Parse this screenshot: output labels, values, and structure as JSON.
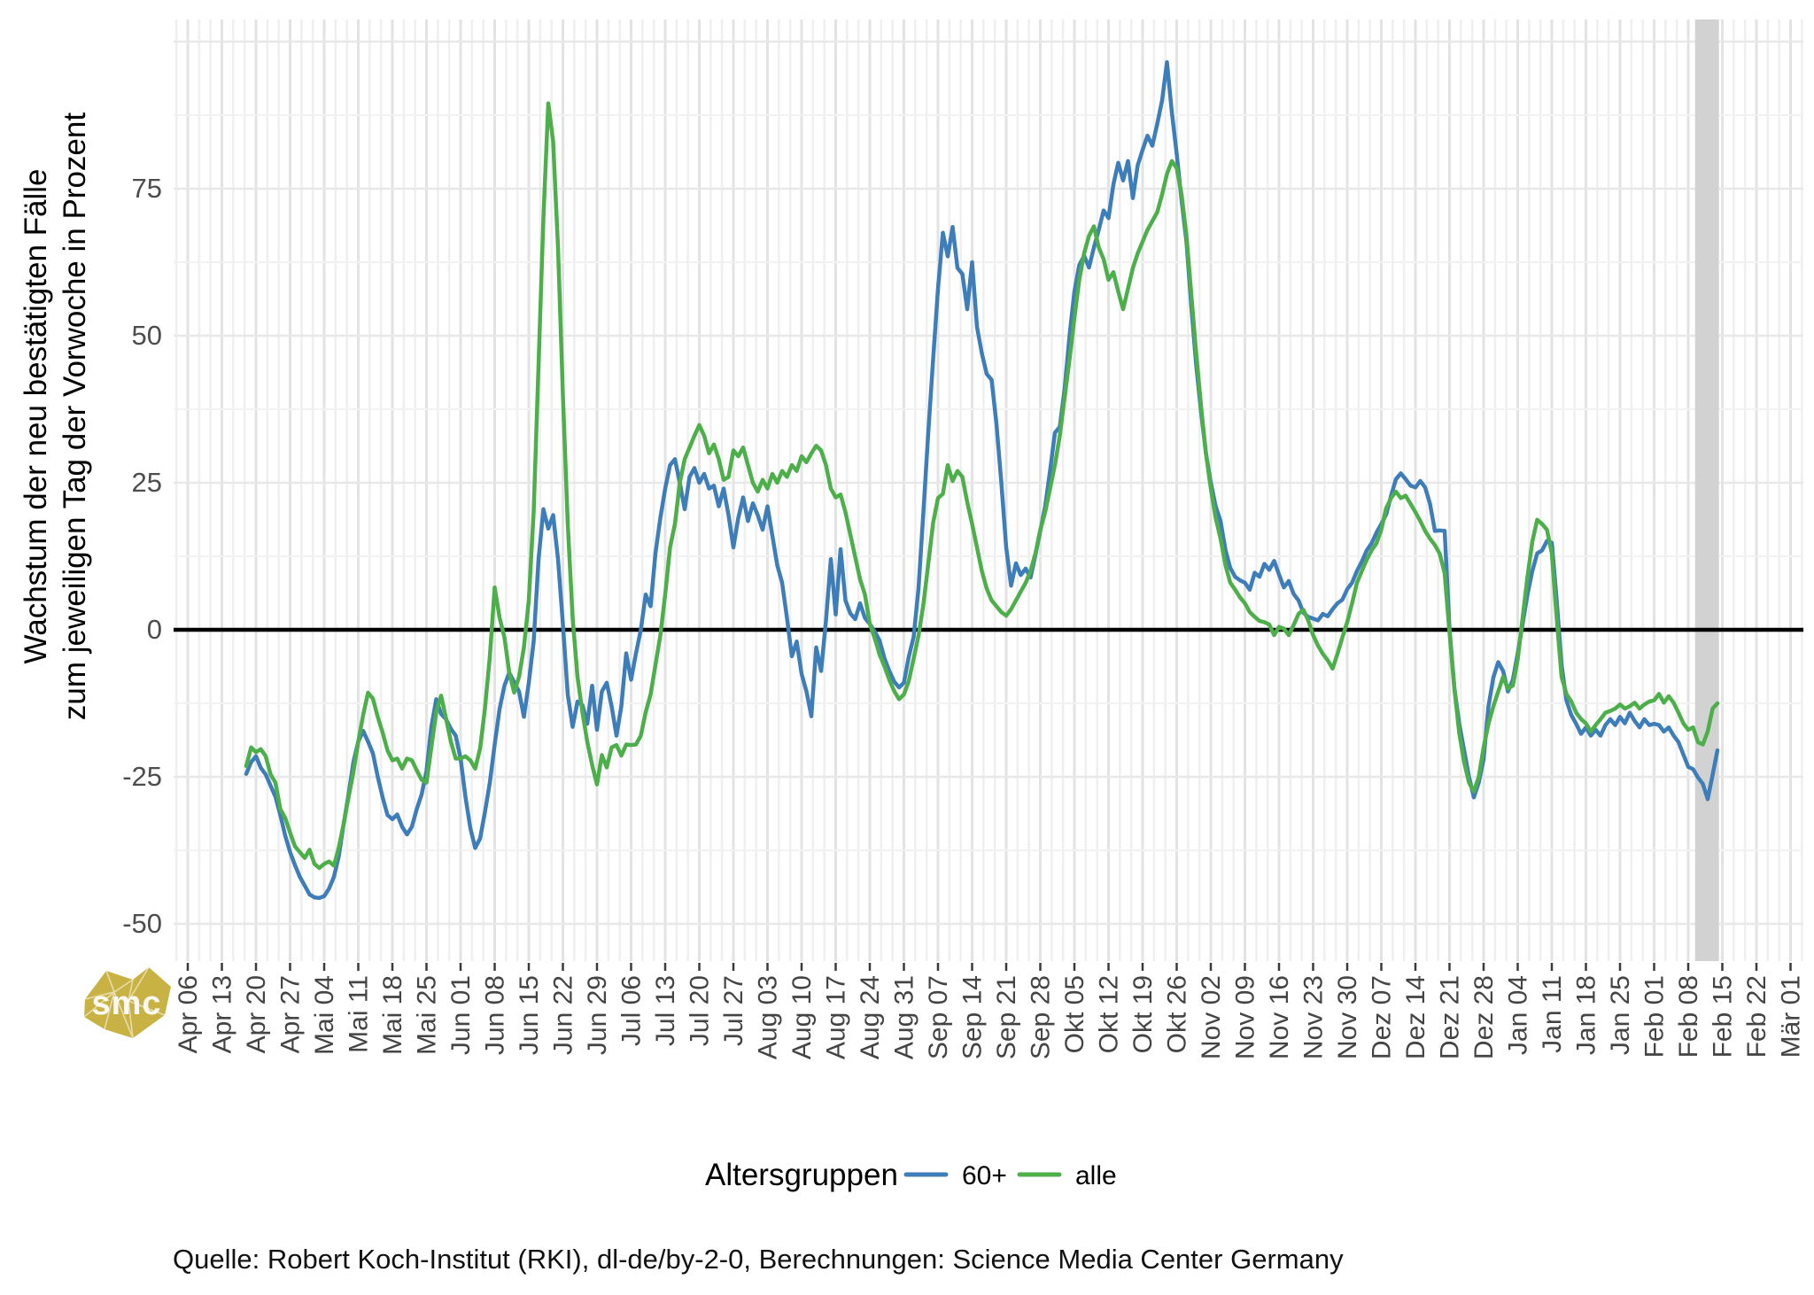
{
  "chart_data": {
    "type": "line",
    "title": "",
    "ylabel_lines": [
      "Wachstum der neu bestätigten Fälle",
      "zum jeweiligen Tag der Vorwoche in Prozent"
    ],
    "y_tick_values": [
      75,
      50,
      25,
      0,
      -25,
      -50
    ],
    "y_minor_values": [
      87.5,
      62.5,
      37.5,
      12.5,
      -12.5,
      -37.5
    ],
    "y_major_grid_values": [
      100,
      75,
      50,
      25,
      -25,
      -50
    ],
    "ylim": [
      -56,
      104
    ],
    "grid": "on",
    "legend_position": "bottom",
    "x_tick_labels": [
      "Apr 06",
      "Apr 13",
      "Apr 20",
      "Apr 27",
      "Mai 04",
      "Mai 11",
      "Mai 18",
      "Mai 25",
      "Jun 01",
      "Jun 08",
      "Jun 15",
      "Jun 22",
      "Jun 29",
      "Jul 06",
      "Jul 13",
      "Jul 20",
      "Jul 27",
      "Aug 03",
      "Aug 10",
      "Aug 17",
      "Aug 24",
      "Aug 31",
      "Sep 07",
      "Sep 14",
      "Sep 21",
      "Sep 28",
      "Okt 05",
      "Okt 12",
      "Okt 19",
      "Okt 26",
      "Nov 02",
      "Nov 09",
      "Nov 16",
      "Nov 23",
      "Nov 30",
      "Dez 07",
      "Dez 14",
      "Dez 21",
      "Dez 28",
      "Jan 04",
      "Jan 11",
      "Jan 18",
      "Jan 25",
      "Feb 01",
      "Feb 08",
      "Feb 15",
      "Feb 22",
      "Mär 01"
    ],
    "start_day_offset": 12,
    "highlight_band": {
      "from_day": 309.4,
      "to_day": 314.3,
      "color": "#d2d2d2"
    },
    "zero_line_color": "#000000",
    "series": [
      {
        "name": "60+",
        "color": "#3d7db9",
        "values": [
          -24.5,
          -22.5,
          -21.5,
          -23.5,
          -24.6,
          -26.5,
          -28.4,
          -31.5,
          -35.0,
          -37.8,
          -40.0,
          -42.0,
          -43.5,
          -45.0,
          -45.5,
          -45.6,
          -45.3,
          -44.0,
          -42.0,
          -38.5,
          -33.0,
          -28.0,
          -22.5,
          -19.0,
          -17.2,
          -19.0,
          -21.0,
          -25.0,
          -28.5,
          -31.5,
          -32.2,
          -31.4,
          -33.5,
          -34.8,
          -33.5,
          -30.5,
          -28.0,
          -24.0,
          -16.5,
          -11.8,
          -14.3,
          -15.2,
          -16.8,
          -18.0,
          -21.9,
          -28.4,
          -33.7,
          -37.1,
          -35.5,
          -31.0,
          -26.0,
          -19.5,
          -13.5,
          -9.5,
          -7.3,
          -8.9,
          -10.5,
          -14.8,
          -9.0,
          -2.0,
          12.0,
          20.5,
          17.2,
          19.5,
          12.0,
          1.0,
          -11.0,
          -16.5,
          -12.2,
          -12.8,
          -16.0,
          -9.5,
          -17.0,
          -10.5,
          -9.0,
          -13.0,
          -18.0,
          -13.0,
          -4.0,
          -8.5,
          -4.0,
          0.0,
          6.0,
          4.0,
          13.0,
          19.0,
          24.0,
          28.0,
          29.0,
          25.0,
          20.5,
          26.0,
          27.5,
          25.0,
          26.5,
          24.0,
          24.5,
          21.0,
          24.0,
          19.5,
          14.0,
          19.0,
          22.5,
          18.5,
          21.5,
          19.5,
          17.0,
          21.0,
          16.0,
          11.0,
          8.0,
          2.0,
          -4.5,
          -2.0,
          -7.5,
          -10.5,
          -14.7,
          -3.0,
          -7.0,
          1.5,
          12.0,
          2.6,
          13.7,
          5.0,
          2.8,
          1.8,
          4.5,
          2.0,
          1.0,
          -0.3,
          -1.8,
          -4.8,
          -7.0,
          -8.8,
          -9.8,
          -9.0,
          -4.6,
          -1.2,
          7.0,
          20.0,
          33.5,
          46.0,
          58.0,
          67.5,
          63.5,
          68.5,
          61.5,
          60.5,
          54.5,
          62.5,
          51.5,
          47.0,
          43.5,
          42.5,
          35.0,
          25.0,
          14.0,
          7.5,
          11.3,
          9.3,
          10.4,
          8.9,
          12.7,
          16.8,
          21.0,
          27.0,
          33.5,
          34.5,
          41.0,
          50.0,
          57.5,
          62.0,
          63.6,
          61.6,
          65.0,
          68.0,
          71.3,
          70.0,
          75.7,
          79.4,
          76.4,
          79.7,
          73.4,
          79.0,
          81.6,
          84.0,
          82.3,
          86.0,
          90.0,
          96.5,
          88.0,
          80.9,
          73.0,
          66.0,
          55.0,
          45.0,
          37.0,
          30.0,
          25.0,
          21.0,
          18.5,
          13.6,
          10.5,
          9.0,
          8.4,
          8.0,
          6.8,
          9.7,
          9.0,
          11.2,
          10.2,
          11.7,
          9.4,
          7.2,
          8.3,
          6.1,
          5.0,
          2.9,
          2.2,
          1.9,
          1.6,
          2.7,
          2.3,
          3.5,
          4.5,
          5.1,
          6.9,
          8.0,
          10.0,
          11.6,
          13.5,
          14.7,
          16.5,
          18.0,
          19.6,
          22.8,
          25.6,
          26.6,
          25.6,
          24.5,
          24.2,
          25.3,
          24.2,
          21.4,
          16.8,
          16.9,
          16.8,
          0.1,
          -9.9,
          -16.0,
          -20.5,
          -25.0,
          -28.5,
          -26.0,
          -22.0,
          -13.0,
          -8.1,
          -5.5,
          -7.0,
          -10.5,
          -8.5,
          -4.0,
          1.0,
          6.0,
          10.0,
          13.0,
          13.5,
          15.1,
          14.8,
          5.0,
          -6.0,
          -12.0,
          -14.5,
          -16.0,
          -17.7,
          -16.6,
          -18.0,
          -17.0,
          -18.0,
          -16.2,
          -15.2,
          -16.2,
          -14.8,
          -15.9,
          -14.1,
          -15.5,
          -16.6,
          -15.2,
          -16.2,
          -16.0,
          -16.2,
          -17.3,
          -16.6,
          -18.0,
          -19.1,
          -21.2,
          -23.3,
          -23.7,
          -25.1,
          -26.2,
          -28.8,
          -24.7,
          -20.5
        ]
      },
      {
        "name": "alle",
        "color": "#4daf4a",
        "values": [
          -23.2,
          -20.0,
          -20.8,
          -20.3,
          -21.5,
          -24.6,
          -26.0,
          -30.5,
          -32.0,
          -34.5,
          -36.8,
          -37.8,
          -38.8,
          -37.4,
          -39.8,
          -40.5,
          -39.8,
          -39.4,
          -40.1,
          -37.0,
          -33.0,
          -28.5,
          -24.2,
          -19.0,
          -14.5,
          -10.7,
          -11.7,
          -14.8,
          -17.5,
          -20.5,
          -22.2,
          -21.9,
          -23.6,
          -21.9,
          -22.2,
          -23.9,
          -25.5,
          -26.0,
          -20.0,
          -14.0,
          -11.2,
          -15.0,
          -19.0,
          -21.9,
          -21.9,
          -21.5,
          -22.2,
          -23.6,
          -20.2,
          -13.4,
          -4.6,
          7.2,
          2.1,
          -1.3,
          -7.3,
          -10.7,
          -8.0,
          -3.0,
          5.0,
          20.0,
          45.0,
          70.0,
          89.5,
          83.0,
          65.0,
          40.0,
          18.0,
          2.0,
          -8.0,
          -14.0,
          -19.0,
          -23.0,
          -26.3,
          -21.3,
          -23.4,
          -20.0,
          -19.6,
          -21.4,
          -19.5,
          -19.6,
          -19.5,
          -18.0,
          -14.0,
          -11.0,
          -6.0,
          -1.0,
          6.0,
          14.0,
          18.0,
          25.0,
          29.0,
          31.0,
          33.0,
          34.8,
          33.0,
          30.0,
          31.5,
          29.0,
          25.5,
          26.0,
          30.5,
          29.5,
          31.0,
          28.0,
          25.0,
          23.5,
          25.5,
          24.0,
          26.5,
          25.0,
          27.0,
          26.0,
          28.0,
          27.0,
          29.5,
          28.5,
          30.0,
          31.3,
          30.5,
          28.0,
          24.0,
          22.5,
          23.0,
          20.0,
          16.2,
          12.4,
          8.6,
          6.0,
          1.0,
          -1.4,
          -4.2,
          -6.2,
          -8.5,
          -10.4,
          -11.8,
          -11.0,
          -8.7,
          -4.9,
          -1.0,
          4.3,
          11.2,
          18.2,
          22.4,
          23.1,
          28.0,
          25.3,
          27.0,
          26.0,
          21.7,
          18.0,
          14.0,
          10.0,
          7.0,
          5.0,
          4.0,
          3.0,
          2.4,
          3.5,
          5.0,
          6.5,
          8.0,
          10.0,
          13.0,
          17.0,
          20.0,
          24.0,
          28.0,
          33.0,
          39.5,
          46.0,
          53.0,
          59.5,
          64.0,
          67.0,
          68.6,
          65.0,
          63.0,
          59.5,
          60.8,
          57.5,
          54.5,
          58.0,
          61.5,
          64.0,
          66.0,
          68.0,
          69.5,
          71.0,
          74.0,
          77.5,
          79.7,
          78.5,
          74.0,
          67.0,
          57.0,
          47.0,
          38.0,
          30.0,
          24.0,
          19.0,
          15.5,
          11.0,
          8.0,
          6.8,
          5.5,
          4.5,
          3.0,
          2.2,
          1.5,
          1.3,
          0.9,
          -0.9,
          0.5,
          0.2,
          -0.9,
          0.8,
          2.7,
          3.4,
          1.6,
          -0.9,
          -2.7,
          -4.1,
          -5.2,
          -6.6,
          -4.1,
          -1.3,
          1.3,
          4.5,
          8.0,
          10.0,
          11.9,
          13.5,
          14.7,
          17.0,
          20.7,
          22.4,
          23.5,
          22.4,
          22.8,
          21.4,
          20.0,
          18.5,
          16.8,
          15.5,
          14.4,
          12.9,
          9.6,
          -0.5,
          -10.0,
          -17.6,
          -22.5,
          -26.0,
          -27.5,
          -25.0,
          -20.0,
          -16.0,
          -13.0,
          -10.5,
          -8.0,
          -10.0,
          -9.5,
          -5.0,
          2.0,
          9.0,
          15.0,
          18.7,
          18.0,
          17.0,
          13.0,
          2.0,
          -8.0,
          -10.9,
          -12.2,
          -14.1,
          -15.2,
          -15.9,
          -17.3,
          -16.2,
          -15.2,
          -14.1,
          -13.8,
          -13.4,
          -12.7,
          -13.4,
          -13.0,
          -12.4,
          -13.4,
          -12.7,
          -12.2,
          -12.0,
          -10.9,
          -12.4,
          -11.3,
          -12.4,
          -14.1,
          -15.9,
          -17.0,
          -16.6,
          -19.1,
          -19.5,
          -17.3,
          -13.4,
          -12.5
        ]
      }
    ]
  },
  "legend": {
    "title": "Altersgruppen",
    "items": [
      {
        "label": "60+",
        "color": "#3d7db9"
      },
      {
        "label": "alle",
        "color": "#4daf4a"
      }
    ]
  },
  "caption": "Quelle: Robert Koch-Institut (RKI), dl-de/by-2-0, Berechnungen: Science Media Center Germany",
  "logo": {
    "text": "smc",
    "color": "#c9b244"
  }
}
